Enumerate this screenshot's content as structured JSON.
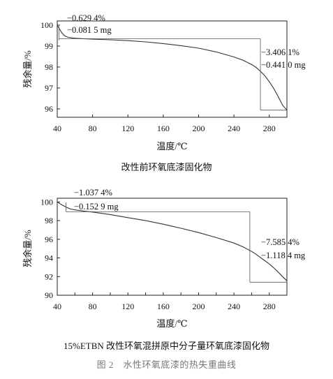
{
  "chart_data": [
    {
      "type": "line",
      "title": "改性前环氧底漆固化物",
      "xlabel": "温度/℃",
      "ylabel": "残余量/%",
      "xlim": [
        40,
        300
      ],
      "ylim": [
        95.6,
        100.2
      ],
      "xticks": [
        40,
        80,
        120,
        160,
        200,
        240,
        280
      ],
      "yticks": [
        96,
        97,
        98,
        99,
        100
      ],
      "grid": false,
      "series": [
        {
          "x": [
            40,
            42,
            45,
            48,
            52,
            58,
            65,
            80,
            100,
            120,
            140,
            160,
            180,
            200,
            220,
            240,
            250,
            260,
            265,
            270,
            275,
            280,
            285,
            290,
            295,
            300
          ],
          "y": [
            100.0,
            99.85,
            99.65,
            99.5,
            99.42,
            99.38,
            99.36,
            99.33,
            99.3,
            99.26,
            99.2,
            99.12,
            99.02,
            98.9,
            98.72,
            98.48,
            98.33,
            98.12,
            97.98,
            97.8,
            97.58,
            97.3,
            96.98,
            96.6,
            96.18,
            95.94
          ]
        }
      ],
      "annotations": [
        {
          "line1": "−0.629 4%",
          "line2": "−0.081 5 mg",
          "x1": 40,
          "x2": 65,
          "level": 99.35
        },
        {
          "line1": "−3.406 1%",
          "line2": "−0.441 0 mg",
          "x1": 65,
          "x2": 270,
          "level_top": 99.35,
          "level_bottom": 95.94
        }
      ]
    },
    {
      "type": "line",
      "title": "15%ETBN 改性环氧混拼原中分子量环氧底漆固化物",
      "xlabel": "温度/℃",
      "ylabel": "残余量/%",
      "xlim": [
        40,
        300
      ],
      "ylim": [
        90,
        100.4
      ],
      "xticks": [
        40,
        60,
        80,
        100,
        120,
        140,
        160,
        180,
        200,
        220,
        240,
        260,
        280,
        300
      ],
      "xticklabels": [
        "40",
        "",
        "80",
        "",
        "120",
        "",
        "160",
        "",
        "200",
        "",
        "240",
        "",
        "280",
        ""
      ],
      "yticks": [
        90,
        92,
        94,
        96,
        98,
        100
      ],
      "grid": false,
      "series": [
        {
          "x": [
            40,
            45,
            50,
            55,
            60,
            70,
            80,
            100,
            120,
            140,
            160,
            180,
            200,
            220,
            240,
            250,
            260,
            265,
            270,
            275,
            280,
            285,
            290,
            295,
            300
          ],
          "y": [
            100.0,
            99.7,
            99.45,
            99.25,
            99.15,
            99.02,
            98.92,
            98.65,
            98.32,
            98.0,
            97.62,
            97.18,
            96.72,
            96.18,
            95.6,
            95.2,
            94.7,
            94.4,
            94.05,
            93.7,
            93.35,
            92.95,
            92.5,
            92.0,
            91.55
          ]
        }
      ],
      "annotations": [
        {
          "line1": "−1.037 4%",
          "line2": "−0.152 9 mg",
          "x1": 50,
          "x2": 52,
          "level_top": 99.95,
          "level_bottom": 98.95
        },
        {
          "line1": "−7.585 4%",
          "line2": "−1.118 4 mg",
          "x1": 52,
          "x2": 258,
          "level_top": 98.95,
          "level_bottom": 91.4
        }
      ]
    }
  ],
  "figure_caption": "图 2　水性环氧底漆的热失重曲线"
}
